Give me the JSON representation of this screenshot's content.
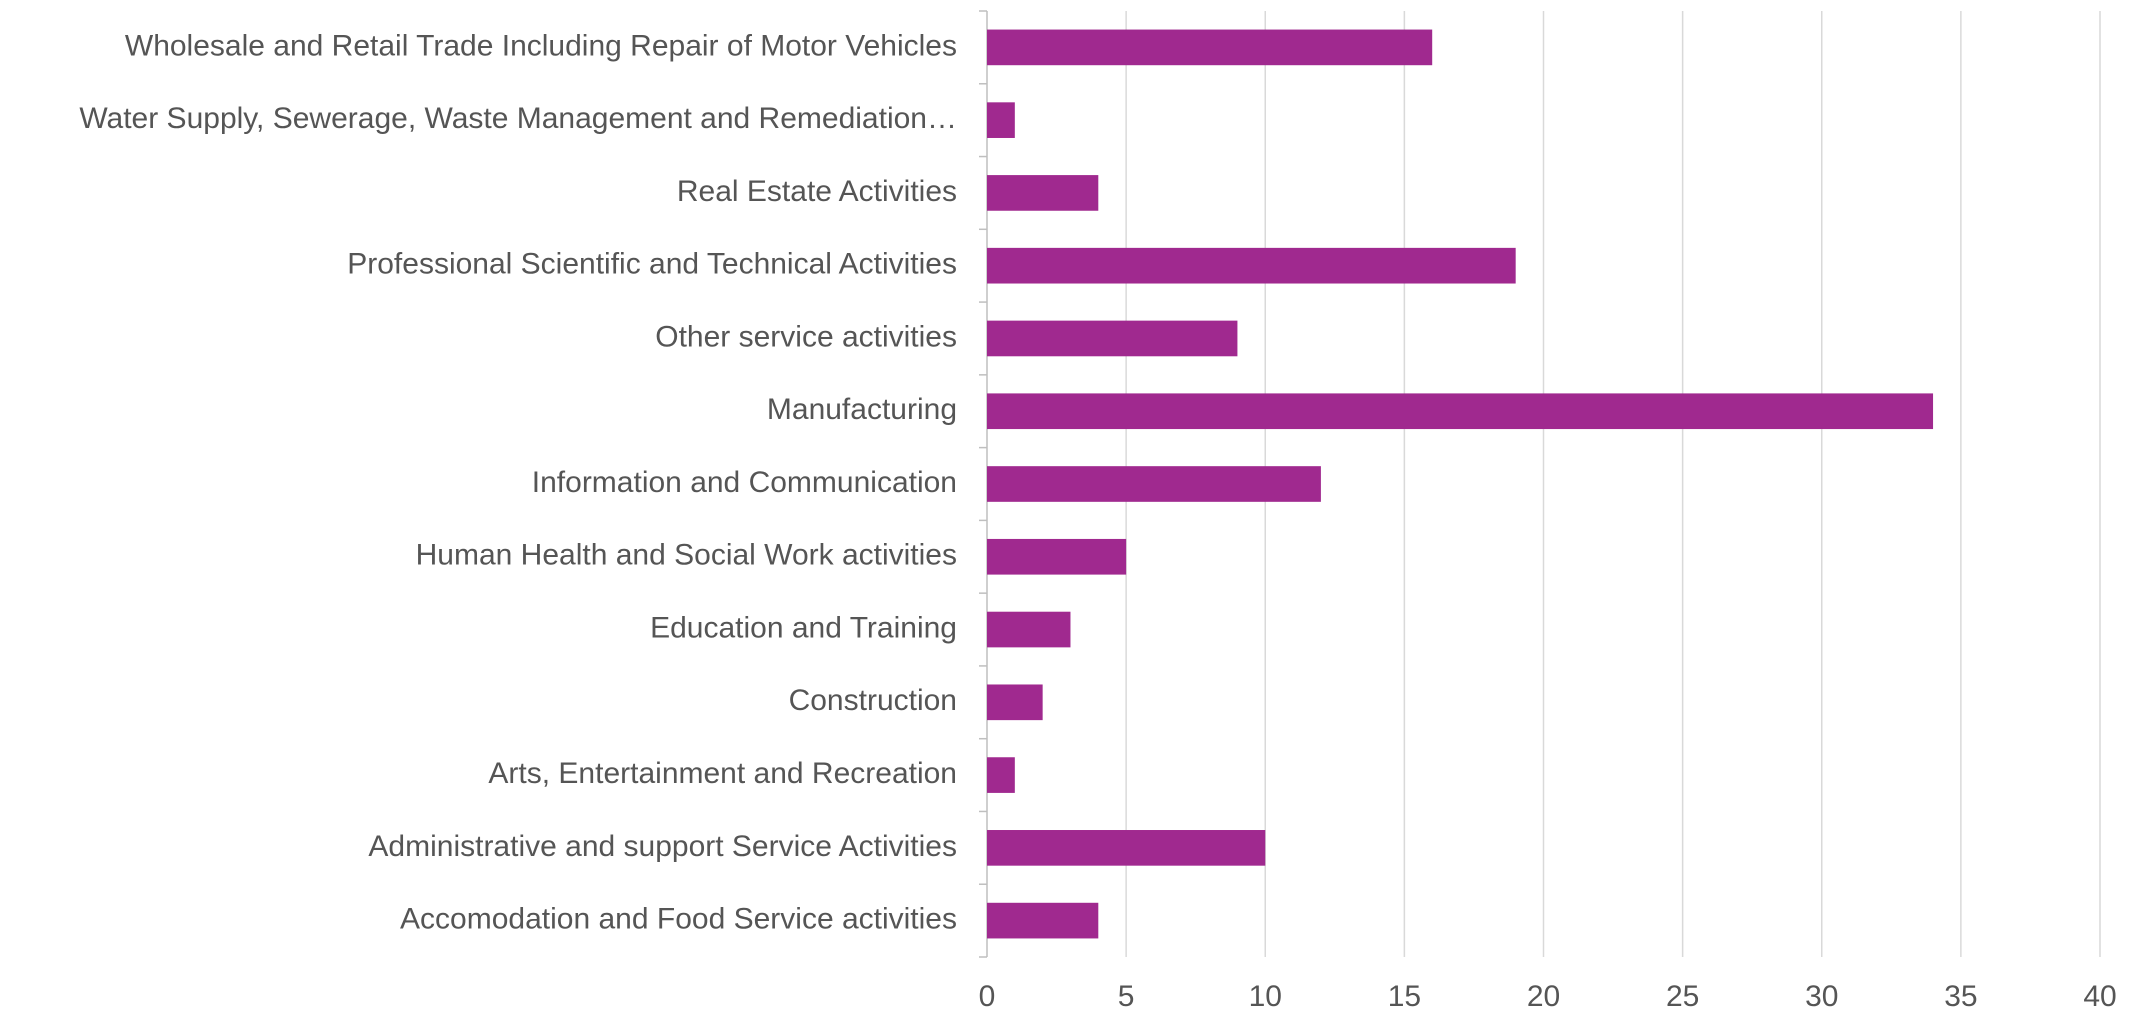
{
  "chart_data": {
    "type": "hbar",
    "categories": [
      "Wholesale and Retail Trade Including Repair of Motor Vehicles",
      "Water Supply, Sewerage, Waste Management and Remediation…",
      "Real Estate Activities",
      "Professional Scientific and Technical Activities",
      "Other service activities",
      "Manufacturing",
      "Information and Communication",
      "Human Health and Social Work activities",
      "Education and Training",
      "Construction",
      "Arts, Entertainment and Recreation",
      "Administrative and support Service Activities",
      "Accomodation and Food Service activities"
    ],
    "values": [
      16,
      1,
      4,
      19,
      9,
      34,
      12,
      5,
      3,
      2,
      1,
      10,
      4
    ],
    "color": "#a0298f",
    "xlim": [
      0,
      40
    ],
    "xticks": [
      0,
      5,
      10,
      15,
      20,
      25,
      30,
      35,
      40
    ],
    "grid": true
  }
}
